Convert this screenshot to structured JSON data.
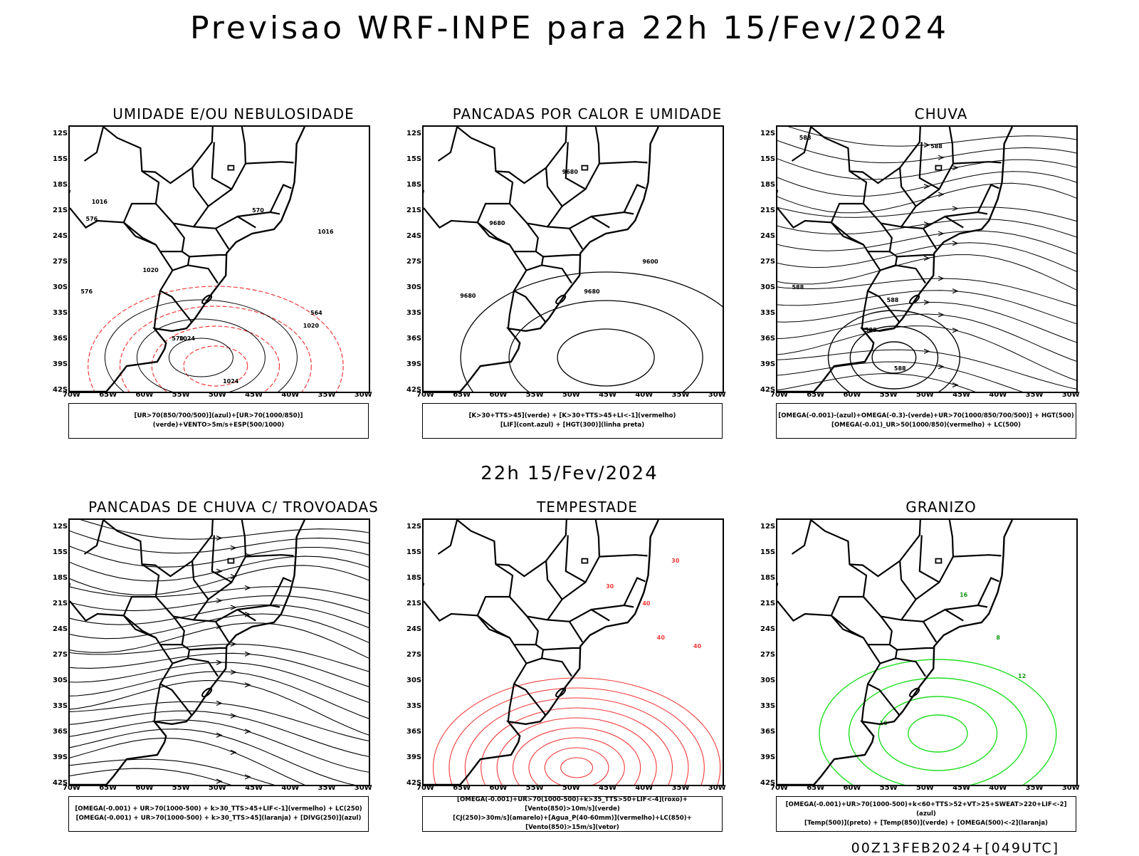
{
  "header": {
    "title": "Previsao WRF-INPE  para 22h 15/Fev/2024",
    "mid_title": "22h 15/Fev/2024",
    "footer": "00Z13FEB2024+[049UTC]"
  },
  "axes": {
    "lat_labels": [
      "12S",
      "15S",
      "18S",
      "21S",
      "24S",
      "27S",
      "30S",
      "33S",
      "36S",
      "39S",
      "42S"
    ],
    "lon_labels": [
      "70W",
      "65W",
      "60W",
      "55W",
      "50W",
      "45W",
      "40W",
      "35W",
      "30W"
    ]
  },
  "panels": [
    {
      "title": "UMIDADE E/OU NEBULOSIDADE",
      "legend": [
        "[UR>70(850/700/500)](azul)+[UR>70(1000/850)](verde)+VENTO>5m/s+ESP(500/1000)"
      ],
      "labels": [
        "1016",
        "1020",
        "1024",
        "1016",
        "1020",
        "1024",
        "576",
        "576",
        "570",
        "570",
        "564"
      ]
    },
    {
      "title": "PANCADAS POR CALOR E UMIDADE",
      "legend": [
        "[K>30+TTS>45](verde) + [K>30+TTS>45+LI<-1](vermelho)",
        "[LIF](cont.azul) + [HGT(300)](linha preta)"
      ],
      "labels": [
        "9680",
        "9680",
        "9680",
        "9600",
        "9680"
      ]
    },
    {
      "title": "CHUVA",
      "legend": [
        "[OMEGA(-0.001)-(azul)+OMEGA(-0.3)-(verde)+UR>70(1000/850/700/500)] + HGT(500)",
        "[OMEGA(-0.01)_UR>50(1000/850)(vermelho) + LC(500)"
      ],
      "labels": [
        "588",
        "588",
        "588",
        "588",
        "588",
        "588"
      ]
    },
    {
      "title": "PANCADAS DE CHUVA C/ TROVOADAS",
      "legend": [
        "[OMEGA(-0.001) + UR>70(1000-500) + k>30_TTS>45+LIF<-1](vermelho) + LC(250)",
        "[OMEGA(-0.001) + UR>70(1000-500) + k>30_TTS>45](laranja) + [DIVG(250)](azul)"
      ],
      "labels": []
    },
    {
      "title": "TEMPESTADE",
      "legend": [
        "[OMEGA(-0.001)+UR>70(1000-500)+k>35_TTS>50+LIF<-4](roxo)+[Vento(850)>10m/s](verde)",
        "[CJ(250)>30m/s](amarelo)+[Agua_P(40-60mm)](vermelho)+LC(850)+[Vento(850)>15m/s](vetor)"
      ],
      "labels": [
        "40",
        "40",
        "30",
        "30",
        "40"
      ]
    },
    {
      "title": "GRANIZO",
      "legend": [
        "[OMEGA(-0.001)+UR>70(1000-500)+k<60+TTS>52+VT>25+SWEAT>220+LIF<-2](azul)",
        "[Temp(500)](preto) + [Temp(850)](verde) + [OMEGA(500)<-2](laranja)"
      ],
      "labels": [
        "16",
        "12",
        "16",
        "8"
      ]
    }
  ],
  "colors": {
    "blue_fill": "#a9a9f5",
    "blue_line": "#3a52f0",
    "green": "#22dd22",
    "red": "#f03a3a",
    "dark_teal": "#2f5a55",
    "orange": "#f08a20",
    "yellow": "#e8d020",
    "black": "#000000"
  }
}
